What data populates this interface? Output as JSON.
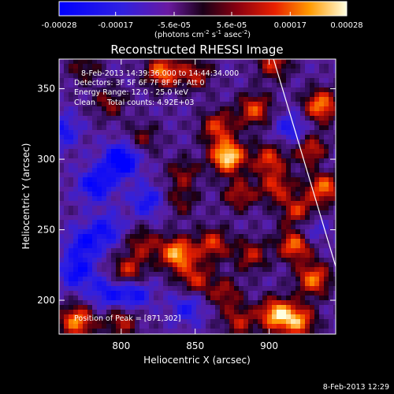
{
  "colorbar": {
    "ticks": [
      "-0.00028",
      "-0.00017",
      "-5.6e-05",
      "5.6e-05",
      "0.00017",
      "0.00028"
    ],
    "tick_values": [
      -0.00028,
      -0.00017,
      -5.6e-05,
      5.6e-05,
      0.00017,
      0.00028
    ],
    "range": [
      -0.00028,
      0.00028
    ],
    "units_main": "(photons cm",
    "units_exp1": "-2",
    "units_mid": " s",
    "units_exp2": "-1",
    "units_end": " asec",
    "units_exp3": "-2",
    "units_close": ")"
  },
  "chart_data": {
    "type": "heatmap",
    "title": "Reconstructed RHESSI Image",
    "xlabel": "Heliocentric X (arcsec)",
    "ylabel": "Heliocentric Y (arcsec)",
    "xlim": [
      758,
      945
    ],
    "ylim": [
      176,
      371
    ],
    "xticks": [
      800,
      850,
      900
    ],
    "yticks": [
      200,
      250,
      300,
      350
    ],
    "peak": [
      871,
      302
    ],
    "limb_line": [
      [
        903,
        371
      ],
      [
        945,
        224
      ]
    ],
    "blobs": [
      {
        "x": 872,
        "y": 302,
        "v": 1.0
      },
      {
        "x": 865,
        "y": 323,
        "v": 0.55
      },
      {
        "x": 890,
        "y": 335,
        "v": 0.6
      },
      {
        "x": 828,
        "y": 362,
        "v": 0.7
      },
      {
        "x": 850,
        "y": 360,
        "v": 0.45
      },
      {
        "x": 903,
        "y": 368,
        "v": 0.5
      },
      {
        "x": 935,
        "y": 338,
        "v": 0.75
      },
      {
        "x": 930,
        "y": 305,
        "v": 0.7
      },
      {
        "x": 937,
        "y": 280,
        "v": 0.7
      },
      {
        "x": 920,
        "y": 262,
        "v": 0.6
      },
      {
        "x": 918,
        "y": 240,
        "v": 0.8
      },
      {
        "x": 930,
        "y": 215,
        "v": 0.7
      },
      {
        "x": 905,
        "y": 190,
        "v": 0.85
      },
      {
        "x": 920,
        "y": 185,
        "v": 0.7
      },
      {
        "x": 838,
        "y": 233,
        "v": 0.85
      },
      {
        "x": 862,
        "y": 240,
        "v": 0.55
      },
      {
        "x": 850,
        "y": 215,
        "v": 0.5
      },
      {
        "x": 805,
        "y": 220,
        "v": 0.55
      },
      {
        "x": 815,
        "y": 240,
        "v": 0.4
      },
      {
        "x": 770,
        "y": 185,
        "v": 0.75
      },
      {
        "x": 800,
        "y": 185,
        "v": 0.45
      },
      {
        "x": 900,
        "y": 300,
        "v": 0.55
      },
      {
        "x": 905,
        "y": 280,
        "v": 0.5
      },
      {
        "x": 880,
        "y": 275,
        "v": 0.45
      },
      {
        "x": 888,
        "y": 232,
        "v": 0.45
      },
      {
        "x": 842,
        "y": 290,
        "v": 0.35
      },
      {
        "x": 792,
        "y": 340,
        "v": 0.35
      },
      {
        "x": 815,
        "y": 315,
        "v": 0.3
      },
      {
        "x": 840,
        "y": 270,
        "v": 0.3
      },
      {
        "x": 870,
        "y": 205,
        "v": 0.4
      },
      {
        "x": 880,
        "y": 185,
        "v": 0.45
      },
      {
        "x": 775,
        "y": 365,
        "v": 0.3
      },
      {
        "x": 800,
        "y": 299,
        "v": -0.75
      },
      {
        "x": 783,
        "y": 282,
        "v": -0.55
      },
      {
        "x": 790,
        "y": 250,
        "v": -0.4
      },
      {
        "x": 770,
        "y": 220,
        "v": -0.5
      },
      {
        "x": 775,
        "y": 240,
        "v": -0.45
      },
      {
        "x": 760,
        "y": 320,
        "v": -0.4
      },
      {
        "x": 818,
        "y": 270,
        "v": -0.4
      },
      {
        "x": 808,
        "y": 205,
        "v": -0.5
      },
      {
        "x": 790,
        "y": 205,
        "v": -0.4
      },
      {
        "x": 845,
        "y": 195,
        "v": -0.35
      },
      {
        "x": 925,
        "y": 250,
        "v": -0.45
      },
      {
        "x": 915,
        "y": 322,
        "v": -0.35
      },
      {
        "x": 935,
        "y": 300,
        "v": -0.3
      }
    ]
  },
  "header": {
    "line1": "8-Feb-2013 14:39:36.000 to 14:44:34.000",
    "line2": "Detectors: 3F 5F 6F 7F 8F 9F, Att 0",
    "line3": "Energy Range: 12.0 - 25.0 keV",
    "line4": "Clean     Total counts: 4.92E+03"
  },
  "peak_label": "Position of Peak = [871,302]",
  "timestamp": "8-Feb-2013 12:29"
}
